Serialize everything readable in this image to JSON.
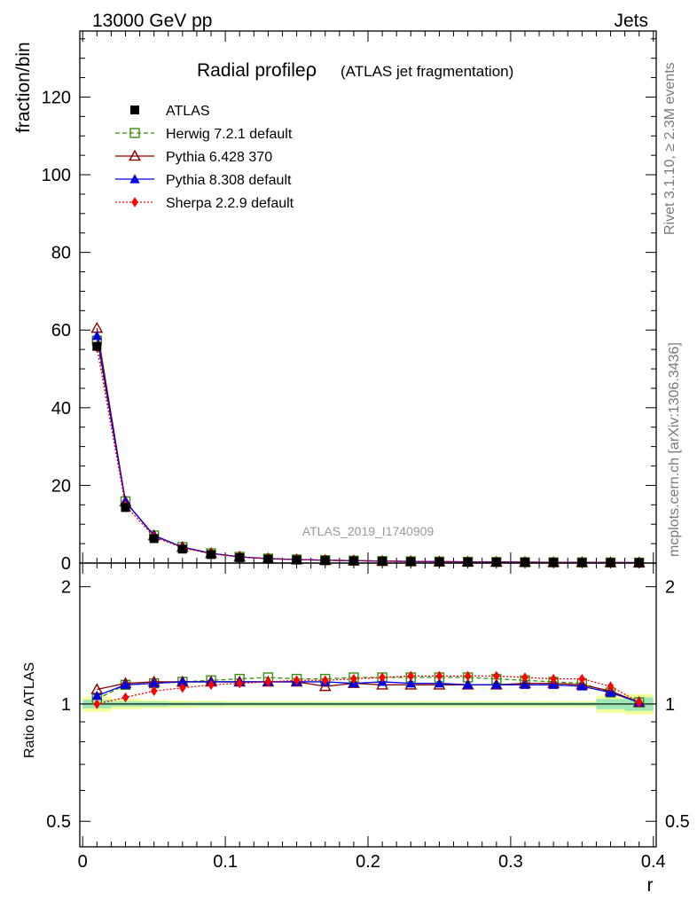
{
  "header": {
    "left_label": "13000 GeV pp",
    "right_label": "Jets"
  },
  "side_labels": {
    "rivet": "Rivet 3.1.10, ≥ 2.3M events",
    "source": "mcplots.cern.ch [arXiv:1306.3436]"
  },
  "chart_data": [
    {
      "type": "line",
      "title": "Radial profile",
      "title_symbol": "ρ",
      "subtitle": "(ATLAS jet fragmentation)",
      "ylabel": "fraction/bin",
      "xlabel": "",
      "watermark": "ATLAS_2019_I1740909",
      "xlim": [
        -0.002,
        0.402
      ],
      "ylim": [
        0,
        137
      ],
      "y_ticks": [
        0,
        20,
        40,
        60,
        80,
        100,
        120
      ],
      "legend_position": "top-left",
      "x": [
        0.01,
        0.03,
        0.05,
        0.07,
        0.09,
        0.11,
        0.13,
        0.15,
        0.17,
        0.19,
        0.21,
        0.23,
        0.25,
        0.27,
        0.29,
        0.31,
        0.33,
        0.35,
        0.37,
        0.39
      ],
      "series": [
        {
          "name": "ATLAS",
          "color": "#000000",
          "marker": "square-filled",
          "style": "none",
          "values": [
            55.8,
            14.3,
            6.3,
            3.6,
            2.2,
            1.4,
            1.0,
            0.8,
            0.65,
            0.55,
            0.45,
            0.38,
            0.32,
            0.28,
            0.24,
            0.2,
            0.17,
            0.15,
            0.13,
            0.11
          ]
        },
        {
          "name": "Herwig 7.2.1 default",
          "color": "#3a8f0f",
          "marker": "square-open",
          "style": "dashed",
          "values": [
            57.3,
            15.9,
            7.1,
            4.1,
            2.5,
            1.6,
            1.15,
            0.92,
            0.75,
            0.63,
            0.52,
            0.44,
            0.37,
            0.32,
            0.28,
            0.23,
            0.19,
            0.17,
            0.14,
            0.11
          ]
        },
        {
          "name": "Pythia 6.428 370",
          "color": "#8b0000",
          "marker": "triangle-open",
          "style": "solid",
          "values": [
            60.5,
            15.8,
            7.1,
            4.1,
            2.5,
            1.6,
            1.14,
            0.9,
            0.72,
            0.62,
            0.5,
            0.43,
            0.36,
            0.31,
            0.27,
            0.23,
            0.19,
            0.17,
            0.14,
            0.11
          ]
        },
        {
          "name": "Pythia 8.308 default",
          "color": "#0000e0",
          "marker": "triangle-filled",
          "style": "solid",
          "values": [
            58.5,
            15.8,
            7.1,
            4.1,
            2.5,
            1.6,
            1.14,
            0.91,
            0.74,
            0.62,
            0.51,
            0.43,
            0.36,
            0.31,
            0.27,
            0.23,
            0.19,
            0.17,
            0.14,
            0.11
          ]
        },
        {
          "name": "Sherpa 2.2.9 default",
          "color": "#ff0000",
          "marker": "diamond-filled",
          "style": "dotted",
          "values": [
            55.5,
            14.8,
            6.8,
            3.9,
            2.4,
            1.55,
            1.12,
            0.9,
            0.74,
            0.63,
            0.52,
            0.44,
            0.38,
            0.33,
            0.28,
            0.23,
            0.19,
            0.17,
            0.14,
            0.11
          ]
        }
      ]
    },
    {
      "type": "line",
      "ylabel": "Ratio to ATLAS",
      "xlabel": "r",
      "xlim": [
        -0.002,
        0.402
      ],
      "ylim": [
        0.43,
        2.3
      ],
      "y_scale": "log",
      "y_tick_labels": [
        "0.5",
        "1",
        "2"
      ],
      "x_tick_labels": [
        "0",
        "0.1",
        "0.2",
        "0.3",
        "0.4"
      ],
      "reference_line": 1,
      "band_color_inner": "#9de7b4",
      "band_color_outer": "#f4ff9c",
      "x": [
        0.01,
        0.03,
        0.05,
        0.07,
        0.09,
        0.11,
        0.13,
        0.15,
        0.17,
        0.19,
        0.21,
        0.23,
        0.25,
        0.27,
        0.29,
        0.31,
        0.33,
        0.35,
        0.37,
        0.39
      ],
      "uncertainty_band": {
        "inner": [
          0.025,
          0.015,
          0.015,
          0.012,
          0.012,
          0.01,
          0.01,
          0.01,
          0.01,
          0.01,
          0.01,
          0.01,
          0.01,
          0.01,
          0.01,
          0.01,
          0.01,
          0.01,
          0.03,
          0.04
        ],
        "outer": [
          0.045,
          0.03,
          0.025,
          0.022,
          0.02,
          0.018,
          0.018,
          0.018,
          0.018,
          0.018,
          0.018,
          0.018,
          0.018,
          0.018,
          0.018,
          0.018,
          0.018,
          0.018,
          0.05,
          0.06
        ]
      },
      "series": [
        {
          "name": "Herwig 7.2.1 default",
          "color": "#3a8f0f",
          "marker": "square-open",
          "style": "dashed",
          "values": [
            1.03,
            1.12,
            1.13,
            1.14,
            1.15,
            1.16,
            1.17,
            1.16,
            1.16,
            1.17,
            1.17,
            1.17,
            1.17,
            1.17,
            1.16,
            1.15,
            1.14,
            1.13,
            1.07,
            1.01
          ]
        },
        {
          "name": "Pythia 6.428 370",
          "color": "#8b0000",
          "marker": "triangle-open",
          "style": "solid",
          "values": [
            1.09,
            1.13,
            1.14,
            1.14,
            1.14,
            1.14,
            1.14,
            1.14,
            1.11,
            1.13,
            1.12,
            1.12,
            1.12,
            1.12,
            1.12,
            1.13,
            1.13,
            1.12,
            1.08,
            1.01
          ]
        },
        {
          "name": "Pythia 8.308 default",
          "color": "#0000e0",
          "marker": "triangle-filled",
          "style": "solid",
          "values": [
            1.05,
            1.12,
            1.13,
            1.14,
            1.14,
            1.14,
            1.14,
            1.14,
            1.14,
            1.13,
            1.14,
            1.13,
            1.13,
            1.12,
            1.12,
            1.12,
            1.12,
            1.11,
            1.07,
            1.01
          ]
        },
        {
          "name": "Sherpa 2.2.9 default",
          "color": "#ff0000",
          "marker": "diamond-filled",
          "style": "dotted",
          "values": [
            1.0,
            1.04,
            1.08,
            1.1,
            1.12,
            1.13,
            1.14,
            1.15,
            1.15,
            1.16,
            1.17,
            1.18,
            1.18,
            1.18,
            1.18,
            1.17,
            1.16,
            1.16,
            1.11,
            1.01
          ]
        }
      ]
    }
  ]
}
